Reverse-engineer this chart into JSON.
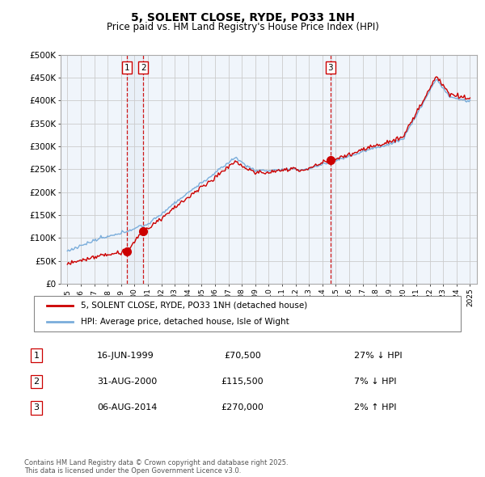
{
  "title": "5, SOLENT CLOSE, RYDE, PO33 1NH",
  "subtitle": "Price paid vs. HM Land Registry's House Price Index (HPI)",
  "ylim": [
    0,
    500000
  ],
  "yticks": [
    0,
    50000,
    100000,
    150000,
    200000,
    250000,
    300000,
    350000,
    400000,
    450000,
    500000
  ],
  "ytick_labels": [
    "£0",
    "£50K",
    "£100K",
    "£150K",
    "£200K",
    "£250K",
    "£300K",
    "£350K",
    "£400K",
    "£450K",
    "£500K"
  ],
  "sale_color": "#cc0000",
  "hpi_color": "#7aaddb",
  "vline_color": "#cc0000",
  "vshade_color": "#dce9f5",
  "grid_color": "#cccccc",
  "background_color": "#ffffff",
  "chart_bg": "#f0f5fb",
  "sales": [
    {
      "date_num": 1999.46,
      "price": 70500,
      "label": "1"
    },
    {
      "date_num": 2000.66,
      "price": 115500,
      "label": "2"
    },
    {
      "date_num": 2014.59,
      "price": 270000,
      "label": "3"
    }
  ],
  "transaction_table": [
    {
      "num": "1",
      "date": "16-JUN-1999",
      "price": "£70,500",
      "hpi": "27% ↓ HPI"
    },
    {
      "num": "2",
      "date": "31-AUG-2000",
      "price": "£115,500",
      "hpi": "7% ↓ HPI"
    },
    {
      "num": "3",
      "date": "06-AUG-2014",
      "price": "£270,000",
      "hpi": "2% ↑ HPI"
    }
  ],
  "legend_entries": [
    "5, SOLENT CLOSE, RYDE, PO33 1NH (detached house)",
    "HPI: Average price, detached house, Isle of Wight"
  ],
  "footnote": "Contains HM Land Registry data © Crown copyright and database right 2025.\nThis data is licensed under the Open Government Licence v3.0."
}
